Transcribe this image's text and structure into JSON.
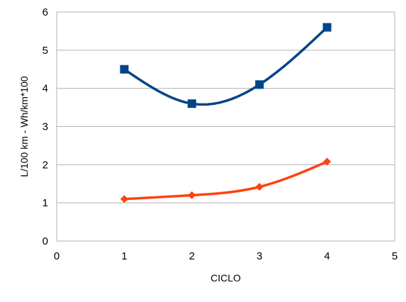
{
  "chart_data": {
    "type": "line",
    "xlabel": "CICLO",
    "ylabel": "L/100 km - Wh/km*100",
    "xlim": [
      0,
      5
    ],
    "ylim": [
      0,
      6
    ],
    "x_ticks": [
      0,
      1,
      2,
      3,
      4,
      5
    ],
    "y_ticks": [
      0,
      1,
      2,
      3,
      4,
      5,
      6
    ],
    "grid": "horizontal",
    "legend": "none",
    "smooth": true,
    "series": [
      {
        "x": [
          1,
          2,
          3,
          4
        ],
        "values": [
          4.5,
          3.6,
          4.1,
          5.6
        ],
        "color": "#004586",
        "marker": "square"
      },
      {
        "x": [
          1,
          2,
          3,
          4
        ],
        "values": [
          1.1,
          1.2,
          1.42,
          2.08
        ],
        "color": "#ff420e",
        "marker": "diamond"
      }
    ]
  }
}
